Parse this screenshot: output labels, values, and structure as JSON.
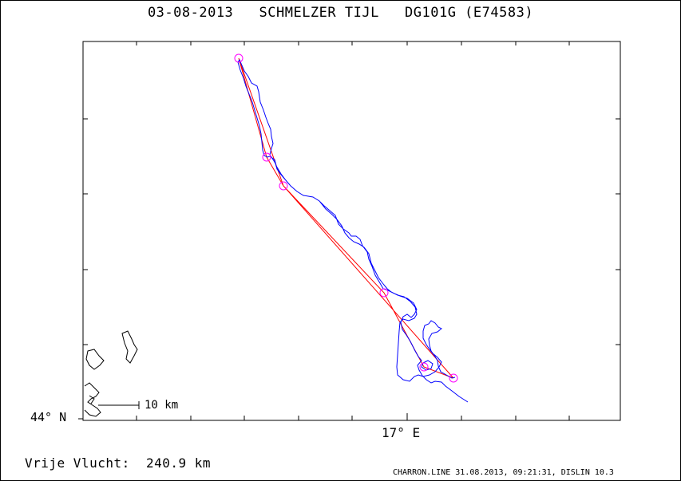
{
  "header": {
    "date": "03-08-2013",
    "pilot": "SCHMELZER TIJL",
    "aircraft": "DG101G (E74583)"
  },
  "map": {
    "lat_label": "44° N",
    "lon_label": "17° E",
    "scale_label": "10 km",
    "colors": {
      "track": "#0000ff",
      "task": "#ff0000",
      "turnpoint": "#ff00ff",
      "coast": "#000000"
    }
  },
  "summary": {
    "label": "Vrije Vlucht:",
    "distance": "240.9 km"
  },
  "footer": {
    "text": "CHARRON.LINE 31.08.2013, 09:21:31, DISLIN 10.3"
  }
}
